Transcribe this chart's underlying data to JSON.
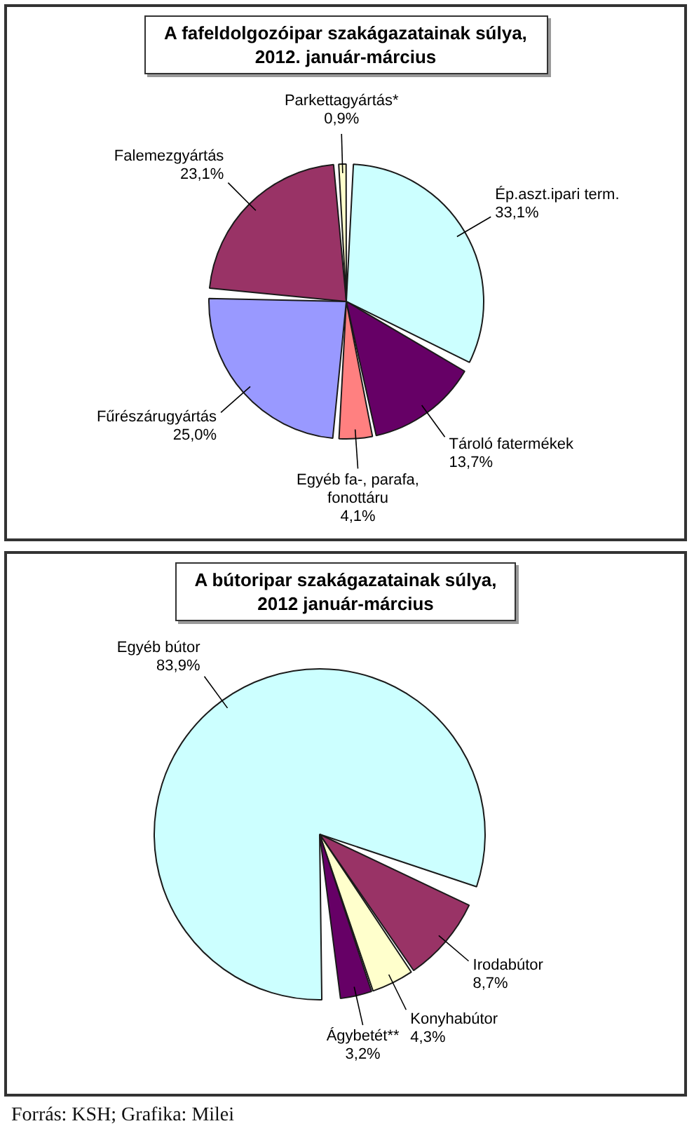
{
  "chart_data": [
    {
      "type": "pie",
      "title": "A fafeldolgozóipar szakágazatainak súlya, 2012. január-március",
      "categories": [
        "Ép.aszt.ipari term.",
        "Tároló fatermékek",
        "Egyéb fa-, parafa, fonottáru",
        "Fűrészárugyártás",
        "Falemezgyártás",
        "Parkettagyártás*"
      ],
      "values": [
        33.1,
        13.7,
        4.1,
        25.0,
        23.1,
        0.9
      ],
      "colors": [
        "#ccffff",
        "#660066",
        "#ff8080",
        "#9999ff",
        "#993366",
        "#ffffcc"
      ],
      "value_labels": [
        "33,1%",
        "13,7%",
        "4,1%",
        "25,0%",
        "23,1%",
        "0,9%"
      ]
    },
    {
      "type": "pie",
      "title": "A bútoripar szakágazatainak súlya, 2012 január-március",
      "categories": [
        "Egyéb bútor",
        "Irodabútor",
        "Konyhabútor",
        "Ágybetét**"
      ],
      "values": [
        83.9,
        8.7,
        4.3,
        3.2
      ],
      "colors": [
        "#ccffff",
        "#993366",
        "#ffffcc",
        "#660066"
      ],
      "value_labels": [
        "83,9%",
        "8,7%",
        "4,3%",
        "3,2%"
      ],
      "annotations": [
        "Forrás: KSH; Grafika: Milei"
      ]
    }
  ]
}
